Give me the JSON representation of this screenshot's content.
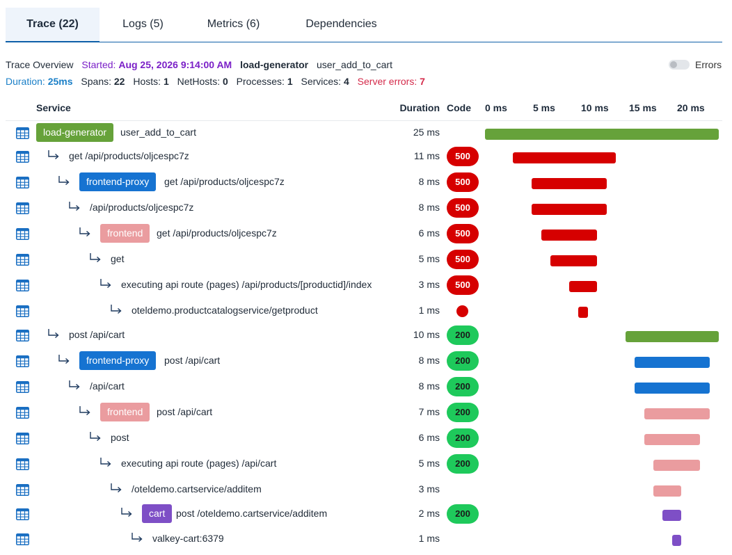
{
  "tabs": [
    {
      "label": "Trace (22)",
      "active": true
    },
    {
      "label": "Logs (5)",
      "active": false
    },
    {
      "label": "Metrics (6)",
      "active": false
    },
    {
      "label": "Dependencies",
      "active": false
    }
  ],
  "overview": {
    "title": "Trace Overview",
    "started_label": "Started:",
    "started_value": "Aug 25, 2026 9:14:00 AM",
    "service": "load-generator",
    "operation": "user_add_to_cart",
    "duration_label": "Duration:",
    "duration_value": "25ms",
    "spans_label": "Spans:",
    "spans_value": "22",
    "hosts_label": "Hosts:",
    "hosts_value": "1",
    "nethosts_label": "NetHosts:",
    "nethosts_value": "0",
    "processes_label": "Processes:",
    "processes_value": "1",
    "services_label": "Services:",
    "services_value": "4",
    "server_errors_label": "Server errors:",
    "server_errors_value": "7",
    "errors_toggle_label": "Errors",
    "errors_toggle_on": false
  },
  "columns": {
    "service": "Service",
    "duration": "Duration",
    "code": "Code",
    "ticks": [
      "0 ms",
      "5 ms",
      "10 ms",
      "15 ms",
      "20 ms"
    ]
  },
  "timeline": {
    "total_ms": 25
  },
  "colors": {
    "load-generator": "#66a23a",
    "frontend-proxy": "#1673d1",
    "frontend": "#ea9c9f",
    "cart": "#7e4fc6",
    "error": "#d60000",
    "ok": "#1ec95b"
  },
  "rows": [
    {
      "level": 0,
      "service": "load-generator",
      "name": "user_add_to_cart",
      "duration": "25 ms",
      "code": "",
      "start_ms": 0,
      "duration_ms": 25,
      "bar_color": "#66a23a"
    },
    {
      "level": 1,
      "service": "",
      "name": "get /api/products/oljcespc7z",
      "duration": "11 ms",
      "code": "500",
      "start_ms": 3,
      "duration_ms": 11,
      "bar_color": "#d60000"
    },
    {
      "level": 2,
      "service": "frontend-proxy",
      "name": "get /api/products/oljcespc7z",
      "duration": "8 ms",
      "code": "500",
      "start_ms": 5,
      "duration_ms": 8,
      "bar_color": "#d60000"
    },
    {
      "level": 3,
      "service": "",
      "name": "/api/products/oljcespc7z",
      "duration": "8 ms",
      "code": "500",
      "start_ms": 5,
      "duration_ms": 8,
      "bar_color": "#d60000"
    },
    {
      "level": 4,
      "service": "frontend",
      "name": "get /api/products/oljcespc7z",
      "duration": "6 ms",
      "code": "500",
      "start_ms": 6,
      "duration_ms": 6,
      "bar_color": "#d60000"
    },
    {
      "level": 5,
      "service": "",
      "name": "get",
      "duration": "5 ms",
      "code": "500",
      "start_ms": 7,
      "duration_ms": 5,
      "bar_color": "#d60000"
    },
    {
      "level": 6,
      "service": "",
      "name": "executing api route (pages) /api/products/[productid]/index",
      "duration": "3 ms",
      "code": "500",
      "start_ms": 9,
      "duration_ms": 3,
      "bar_color": "#d60000"
    },
    {
      "level": 7,
      "service": "",
      "name": "oteldemo.productcatalogservice/getproduct",
      "duration": "1 ms",
      "code": "dot",
      "start_ms": 10,
      "duration_ms": 1,
      "bar_color": "#d60000"
    },
    {
      "level": 1,
      "service": "",
      "name": "post /api/cart",
      "duration": "10 ms",
      "code": "200",
      "start_ms": 15,
      "duration_ms": 10,
      "bar_color": "#66a23a"
    },
    {
      "level": 2,
      "service": "frontend-proxy",
      "name": "post /api/cart",
      "duration": "8 ms",
      "code": "200",
      "start_ms": 16,
      "duration_ms": 8,
      "bar_color": "#1673d1"
    },
    {
      "level": 3,
      "service": "",
      "name": "/api/cart",
      "duration": "8 ms",
      "code": "200",
      "start_ms": 16,
      "duration_ms": 8,
      "bar_color": "#1673d1"
    },
    {
      "level": 4,
      "service": "frontend",
      "name": "post /api/cart",
      "duration": "7 ms",
      "code": "200",
      "start_ms": 17,
      "duration_ms": 7,
      "bar_color": "#ea9c9f"
    },
    {
      "level": 5,
      "service": "",
      "name": "post",
      "duration": "6 ms",
      "code": "200",
      "start_ms": 17,
      "duration_ms": 6,
      "bar_color": "#ea9c9f"
    },
    {
      "level": 6,
      "service": "",
      "name": "executing api route (pages) /api/cart",
      "duration": "5 ms",
      "code": "200",
      "start_ms": 18,
      "duration_ms": 5,
      "bar_color": "#ea9c9f"
    },
    {
      "level": 7,
      "service": "",
      "name": "/oteldemo.cartservice/additem",
      "duration": "3 ms",
      "code": "",
      "start_ms": 18,
      "duration_ms": 3,
      "bar_color": "#ea9c9f"
    },
    {
      "level": 8,
      "service": "cart",
      "name": "post /oteldemo.cartservice/additem",
      "duration": "2 ms",
      "code": "200",
      "start_ms": 19,
      "duration_ms": 2,
      "bar_color": "#7e4fc6"
    },
    {
      "level": 9,
      "service": "",
      "name": "valkey-cart:6379",
      "duration": "1 ms",
      "code": "",
      "start_ms": 20,
      "duration_ms": 1,
      "bar_color": "#7e4fc6"
    }
  ]
}
